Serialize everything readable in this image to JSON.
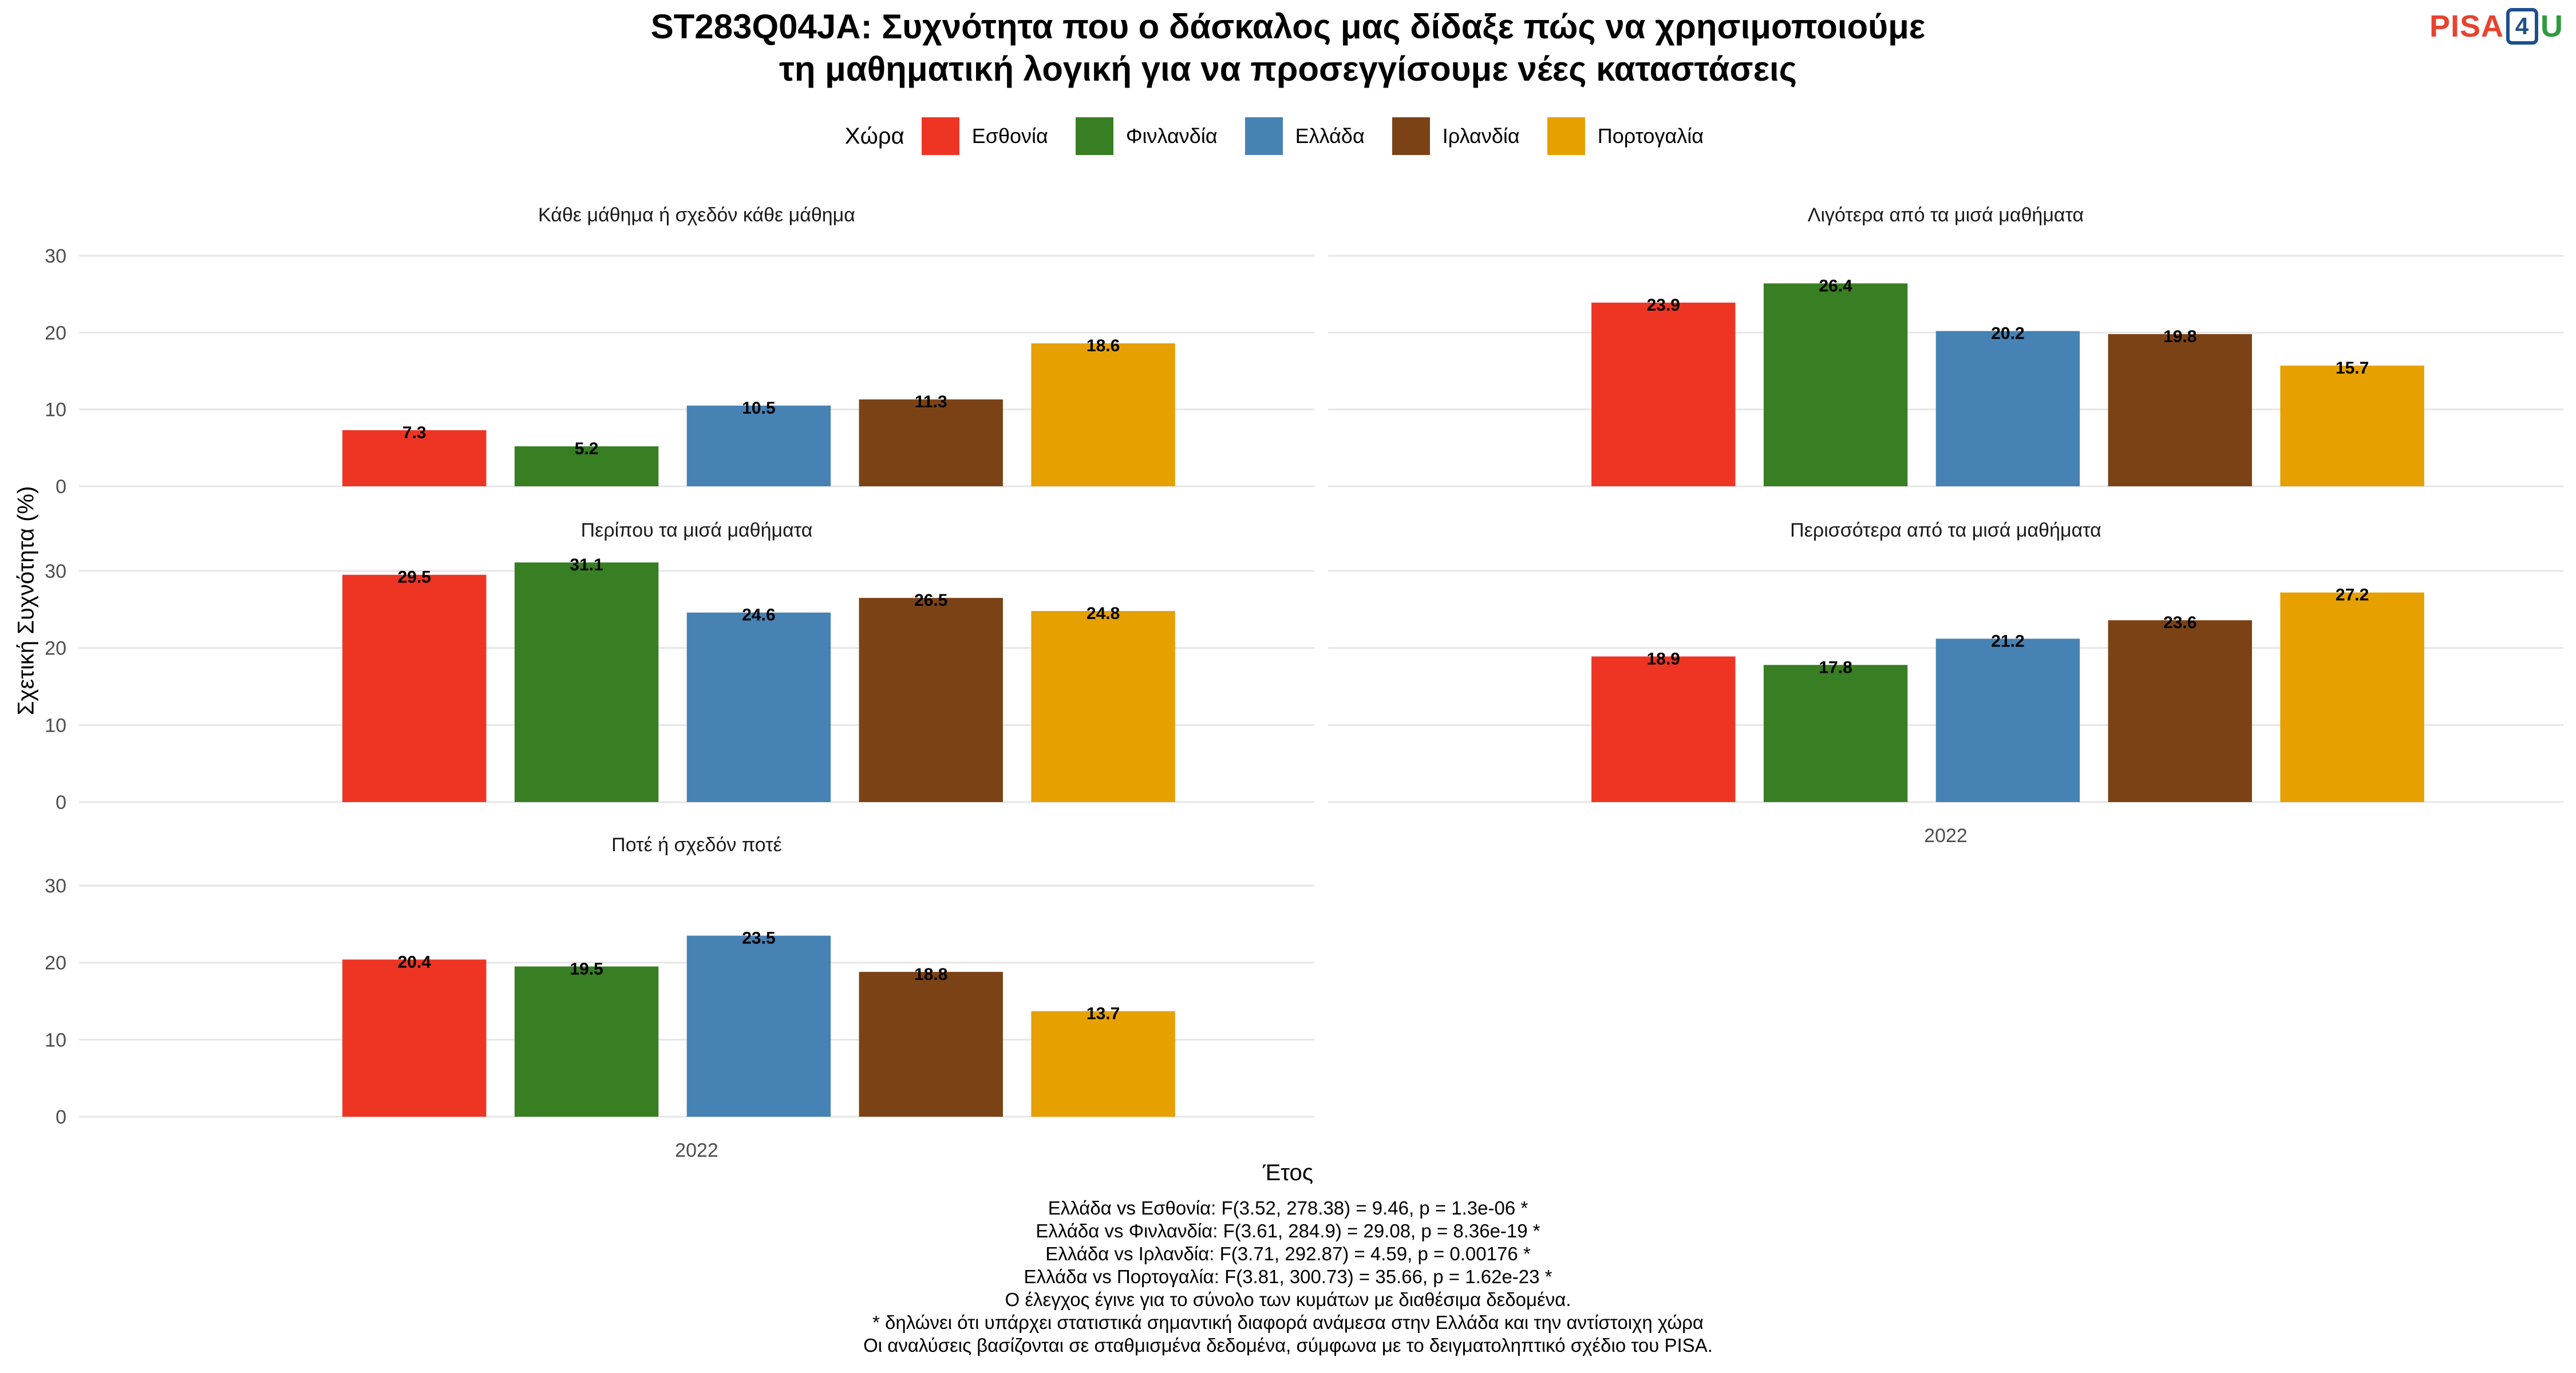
{
  "title_lines": [
    "ST283Q04JA: Συχνότητα που ο δάσκαλος μας δίδαξε πώς να χρησιμοποιούμε",
    "τη μαθηματική λογική για να προσεγγίσουμε νέες καταστάσεις"
  ],
  "logo": {
    "pisa": "PISA",
    "num": "4",
    "u": "U"
  },
  "legend_title": "Χώρα",
  "colors": {
    "Εσθονία": "#EE3524",
    "Φινλανδία": "#387E23",
    "Ελλάδα": "#4682B4",
    "Ιρλανδία": "#7B4315",
    "Πορτογαλία": "#E6A000"
  },
  "chart_data": {
    "type": "bar",
    "x_label": "Έτος",
    "y_label": "Σχετική Συχνότητα (%)",
    "ylim": [
      0,
      30
    ],
    "y_ticks": [
      0,
      10,
      20,
      30
    ],
    "x_tick": "2022",
    "series_names": [
      "Εσθονία",
      "Φινλανδία",
      "Ελλάδα",
      "Ιρλανδία",
      "Πορτογαλία"
    ],
    "facets": [
      {
        "title": "Κάθε μάθημα ή σχεδόν κάθε μάθημα",
        "values": [
          7.3,
          5.2,
          10.5,
          11.3,
          18.6
        ]
      },
      {
        "title": "Λιγότερα από τα μισά μαθήματα",
        "values": [
          23.9,
          26.4,
          20.2,
          19.8,
          15.7
        ]
      },
      {
        "title": "Περίπου τα μισά μαθήματα",
        "values": [
          29.5,
          31.1,
          24.6,
          26.5,
          24.8
        ]
      },
      {
        "title": "Περισσότερα από τα μισά μαθήματα",
        "values": [
          18.9,
          17.8,
          21.2,
          23.6,
          27.2
        ]
      },
      {
        "title": "Ποτέ ή σχεδόν ποτέ",
        "values": [
          20.4,
          19.5,
          23.5,
          18.8,
          13.7
        ]
      }
    ]
  },
  "notes": [
    "Ελλάδα vs Εσθονία: F(3.52, 278.38) = 9.46, p = 1.3e-06 *",
    "Ελλάδα vs Φινλανδία: F(3.61, 284.9) = 29.08, p = 8.36e-19 *",
    "Ελλάδα vs Ιρλανδία: F(3.71, 292.87) = 4.59, p = 0.00176 *",
    "Ελλάδα vs Πορτογαλία: F(3.81, 300.73) = 35.66, p = 1.62e-23 *",
    "Ο έλεγχος έγινε για το σύνολο των κυμάτων με διαθέσιμα δεδομένα.",
    "* δηλώνει ότι υπάρχει στατιστικά σημαντική διαφορά ανάμεσα στην Ελλάδα και την αντίστοιχη χώρα",
    "Οι αναλύσεις βασίζονται σε σταθμισμένα δεδομένα, σύμφωνα με το δειγματοληπτικό σχέδιο του PISA."
  ]
}
